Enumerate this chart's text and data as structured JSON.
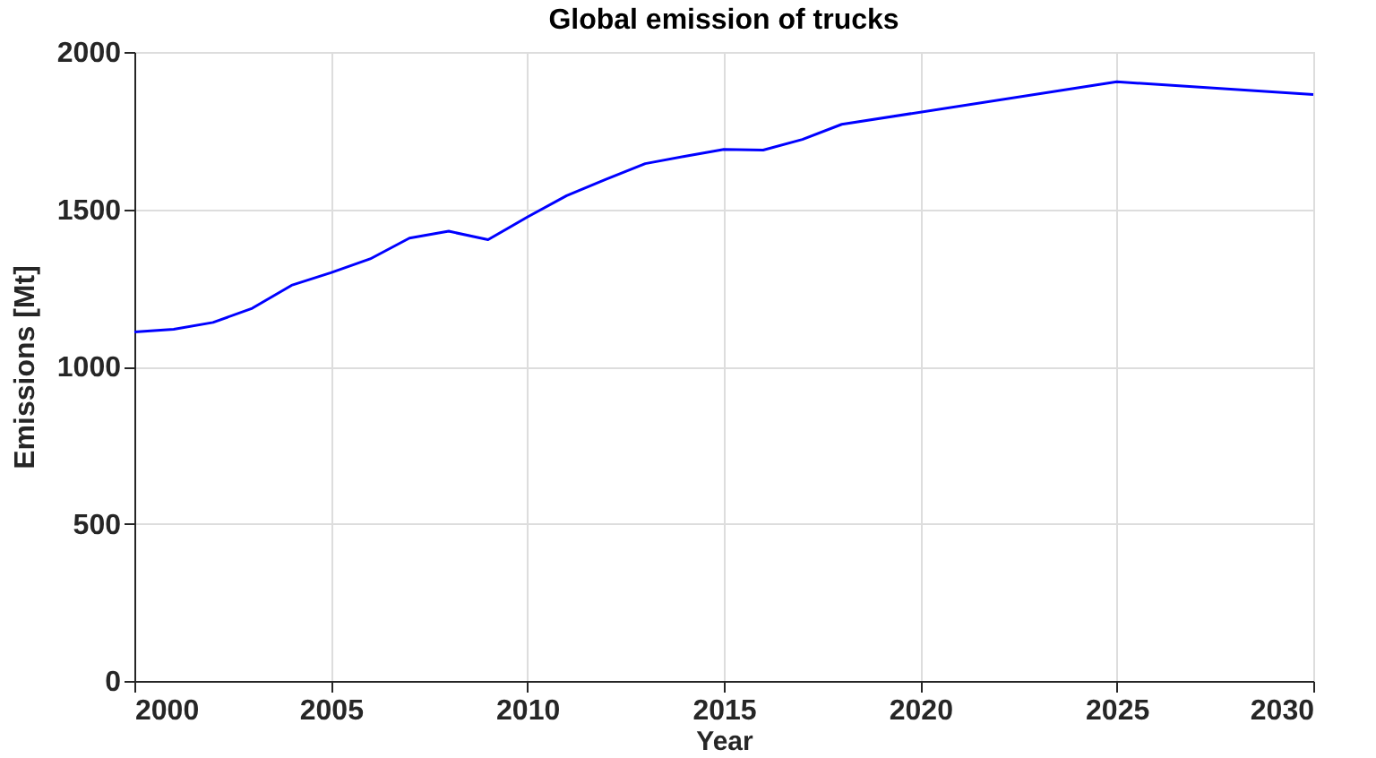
{
  "chart_data": {
    "type": "line",
    "title": "Global emission of trucks",
    "xlabel": "Year",
    "ylabel": "Emissions [Mt]",
    "x": [
      2000,
      2001,
      2002,
      2003,
      2004,
      2005,
      2006,
      2007,
      2008,
      2009,
      2010,
      2011,
      2012,
      2013,
      2014,
      2015,
      2016,
      2017,
      2018,
      2025,
      2030
    ],
    "series": [
      {
        "color": "#0000ff",
        "values": [
          1110,
          1118,
          1140,
          1185,
          1258,
          1298,
          1342,
          1408,
          1430,
          1403,
          1475,
          1543,
          1595,
          1645,
          1668,
          1690,
          1688,
          1722,
          1770,
          1905,
          1865
        ]
      }
    ],
    "xlim": [
      2000,
      2030
    ],
    "xticks": [
      2000,
      2005,
      2010,
      2015,
      2020,
      2025,
      2030
    ],
    "ylim": [
      0,
      2000
    ],
    "yticks": [
      0,
      500,
      1000,
      1500,
      2000
    ],
    "grid": true,
    "line_style": "solid",
    "marker": "none"
  }
}
